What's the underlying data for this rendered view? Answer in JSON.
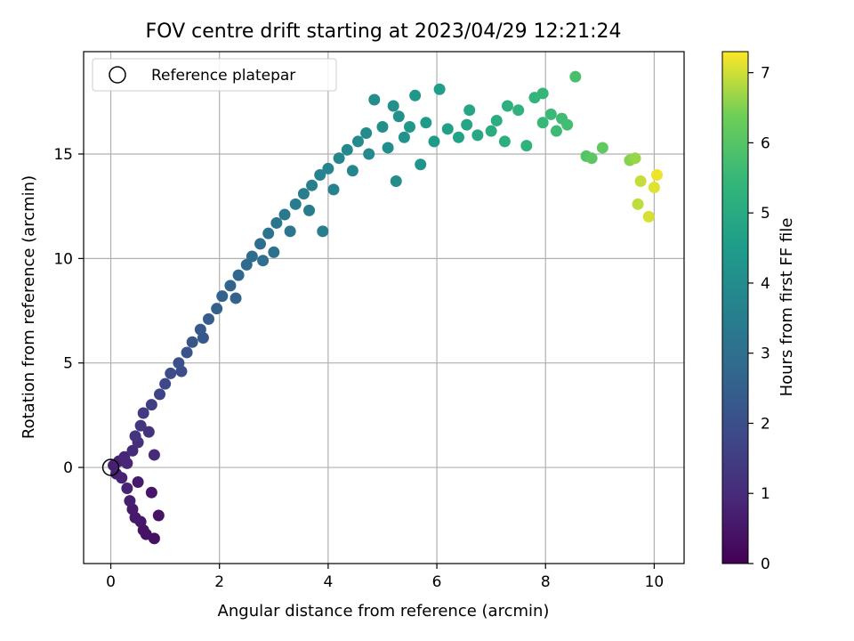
{
  "chart_data": {
    "type": "scatter",
    "title": "FOV centre drift starting at 2023/04/29 12:21:24",
    "xlabel": "Angular distance from reference (arcmin)",
    "ylabel": "Rotation from reference (arcmin)",
    "xlim": [
      -0.5,
      10.55
    ],
    "ylim": [
      -4.6,
      19.9
    ],
    "xticks": [
      0,
      2,
      4,
      6,
      8,
      10
    ],
    "yticks": [
      0,
      5,
      10,
      15
    ],
    "xtick_labels": [
      "0",
      "2",
      "4",
      "6",
      "8",
      "10"
    ],
    "ytick_labels": [
      "0",
      "5",
      "10",
      "15"
    ],
    "grid": true,
    "colormap": "viridis",
    "colorbar": {
      "label": "Hours from first FF file",
      "range": [
        0,
        7.3
      ],
      "ticks": [
        0,
        1,
        2,
        3,
        4,
        5,
        6,
        7
      ],
      "tick_labels": [
        "0",
        "1",
        "2",
        "3",
        "4",
        "5",
        "6",
        "7"
      ]
    },
    "legend": {
      "position": "top-left",
      "entries": [
        {
          "label": "Reference platepar",
          "marker": "open-circle"
        }
      ]
    },
    "reference_point": {
      "x": 0,
      "y": 0
    },
    "points": [
      {
        "x": 0.05,
        "y": 0.1,
        "t": 0.7
      },
      {
        "x": 0.1,
        "y": -0.3,
        "t": 0.75
      },
      {
        "x": 0.15,
        "y": 0.3,
        "t": 0.8
      },
      {
        "x": 0.2,
        "y": -0.5,
        "t": 0.8
      },
      {
        "x": 0.25,
        "y": 0.5,
        "t": 0.85
      },
      {
        "x": 0.3,
        "y": -1.0,
        "t": 0.8
      },
      {
        "x": 0.35,
        "y": -1.6,
        "t": 0.7
      },
      {
        "x": 0.4,
        "y": -2.0,
        "t": 0.6
      },
      {
        "x": 0.45,
        "y": -2.4,
        "t": 0.55
      },
      {
        "x": 0.55,
        "y": -2.6,
        "t": 0.5
      },
      {
        "x": 0.6,
        "y": -3.0,
        "t": 0.45
      },
      {
        "x": 0.65,
        "y": -3.2,
        "t": 0.4
      },
      {
        "x": 0.8,
        "y": -3.4,
        "t": 0.35
      },
      {
        "x": 0.88,
        "y": -2.3,
        "t": 0.4
      },
      {
        "x": 0.75,
        "y": -1.2,
        "t": 0.5
      },
      {
        "x": 0.5,
        "y": -0.7,
        "t": 0.6
      },
      {
        "x": 0.3,
        "y": 0.2,
        "t": 0.9
      },
      {
        "x": 0.4,
        "y": 0.8,
        "t": 1.0
      },
      {
        "x": 0.5,
        "y": 1.2,
        "t": 1.1
      },
      {
        "x": 0.45,
        "y": 1.5,
        "t": 1.25
      },
      {
        "x": 0.55,
        "y": 2.0,
        "t": 1.3
      },
      {
        "x": 0.7,
        "y": 1.7,
        "t": 1.2
      },
      {
        "x": 0.8,
        "y": 0.6,
        "t": 1.0
      },
      {
        "x": 0.6,
        "y": 2.6,
        "t": 1.45
      },
      {
        "x": 0.75,
        "y": 3.0,
        "t": 1.55
      },
      {
        "x": 0.9,
        "y": 3.5,
        "t": 1.7
      },
      {
        "x": 1.0,
        "y": 4.0,
        "t": 1.8
      },
      {
        "x": 1.1,
        "y": 4.5,
        "t": 1.95
      },
      {
        "x": 1.25,
        "y": 5.0,
        "t": 2.05
      },
      {
        "x": 1.3,
        "y": 4.6,
        "t": 1.95
      },
      {
        "x": 1.4,
        "y": 5.5,
        "t": 2.15
      },
      {
        "x": 1.5,
        "y": 6.0,
        "t": 2.2
      },
      {
        "x": 1.65,
        "y": 6.6,
        "t": 2.3
      },
      {
        "x": 1.7,
        "y": 6.2,
        "t": 2.25
      },
      {
        "x": 1.8,
        "y": 7.1,
        "t": 2.4
      },
      {
        "x": 1.95,
        "y": 7.6,
        "t": 2.5
      },
      {
        "x": 2.05,
        "y": 8.2,
        "t": 2.55
      },
      {
        "x": 2.2,
        "y": 8.7,
        "t": 2.65
      },
      {
        "x": 2.3,
        "y": 8.1,
        "t": 2.6
      },
      {
        "x": 2.35,
        "y": 9.2,
        "t": 2.75
      },
      {
        "x": 2.5,
        "y": 9.7,
        "t": 2.85
      },
      {
        "x": 2.6,
        "y": 10.1,
        "t": 2.9
      },
      {
        "x": 2.75,
        "y": 10.7,
        "t": 3.0
      },
      {
        "x": 2.8,
        "y": 9.9,
        "t": 2.95
      },
      {
        "x": 2.9,
        "y": 11.2,
        "t": 3.1
      },
      {
        "x": 3.0,
        "y": 10.3,
        "t": 3.05
      },
      {
        "x": 3.05,
        "y": 11.7,
        "t": 3.2
      },
      {
        "x": 3.2,
        "y": 12.1,
        "t": 3.3
      },
      {
        "x": 3.3,
        "y": 11.3,
        "t": 3.2
      },
      {
        "x": 3.4,
        "y": 12.6,
        "t": 3.4
      },
      {
        "x": 3.55,
        "y": 13.1,
        "t": 3.5
      },
      {
        "x": 3.65,
        "y": 12.3,
        "t": 3.45
      },
      {
        "x": 3.7,
        "y": 13.5,
        "t": 3.55
      },
      {
        "x": 3.85,
        "y": 14.0,
        "t": 3.65
      },
      {
        "x": 3.9,
        "y": 11.3,
        "t": 3.5
      },
      {
        "x": 4.0,
        "y": 14.3,
        "t": 3.7
      },
      {
        "x": 4.1,
        "y": 13.3,
        "t": 3.65
      },
      {
        "x": 4.2,
        "y": 14.8,
        "t": 3.8
      },
      {
        "x": 4.35,
        "y": 15.2,
        "t": 3.85
      },
      {
        "x": 4.45,
        "y": 14.2,
        "t": 3.8
      },
      {
        "x": 4.55,
        "y": 15.6,
        "t": 3.9
      },
      {
        "x": 4.7,
        "y": 16.0,
        "t": 3.95
      },
      {
        "x": 4.75,
        "y": 15.0,
        "t": 3.9
      },
      {
        "x": 4.85,
        "y": 17.6,
        "t": 4.0
      },
      {
        "x": 5.0,
        "y": 16.3,
        "t": 4.05
      },
      {
        "x": 5.1,
        "y": 15.3,
        "t": 4.0
      },
      {
        "x": 5.2,
        "y": 17.3,
        "t": 4.1
      },
      {
        "x": 5.25,
        "y": 13.7,
        "t": 4.05
      },
      {
        "x": 5.3,
        "y": 16.8,
        "t": 4.15
      },
      {
        "x": 5.4,
        "y": 15.8,
        "t": 4.2
      },
      {
        "x": 5.5,
        "y": 16.3,
        "t": 4.3
      },
      {
        "x": 5.6,
        "y": 17.8,
        "t": 4.35
      },
      {
        "x": 5.7,
        "y": 14.5,
        "t": 4.25
      },
      {
        "x": 5.8,
        "y": 16.5,
        "t": 4.45
      },
      {
        "x": 6.05,
        "y": 18.1,
        "t": 4.55
      },
      {
        "x": 5.95,
        "y": 15.6,
        "t": 4.5
      },
      {
        "x": 6.2,
        "y": 16.2,
        "t": 4.65
      },
      {
        "x": 6.4,
        "y": 15.8,
        "t": 4.7
      },
      {
        "x": 6.55,
        "y": 16.4,
        "t": 4.8
      },
      {
        "x": 6.6,
        "y": 17.1,
        "t": 4.85
      },
      {
        "x": 6.75,
        "y": 15.9,
        "t": 4.9
      },
      {
        "x": 7.0,
        "y": 16.1,
        "t": 5.05
      },
      {
        "x": 7.1,
        "y": 16.6,
        "t": 5.1
      },
      {
        "x": 7.25,
        "y": 15.6,
        "t": 5.15
      },
      {
        "x": 7.3,
        "y": 17.3,
        "t": 5.2
      },
      {
        "x": 7.5,
        "y": 17.1,
        "t": 5.25
      },
      {
        "x": 7.65,
        "y": 15.4,
        "t": 5.3
      },
      {
        "x": 7.8,
        "y": 17.7,
        "t": 5.35
      },
      {
        "x": 7.95,
        "y": 17.9,
        "t": 5.45
      },
      {
        "x": 7.95,
        "y": 16.5,
        "t": 5.5
      },
      {
        "x": 8.1,
        "y": 16.9,
        "t": 5.55
      },
      {
        "x": 8.2,
        "y": 16.1,
        "t": 5.6
      },
      {
        "x": 8.3,
        "y": 16.7,
        "t": 5.65
      },
      {
        "x": 8.4,
        "y": 16.4,
        "t": 5.7
      },
      {
        "x": 8.55,
        "y": 18.7,
        "t": 5.8
      },
      {
        "x": 8.75,
        "y": 14.9,
        "t": 6.0
      },
      {
        "x": 8.85,
        "y": 14.8,
        "t": 6.1
      },
      {
        "x": 9.05,
        "y": 15.3,
        "t": 6.2
      },
      {
        "x": 9.55,
        "y": 14.7,
        "t": 6.55
      },
      {
        "x": 9.65,
        "y": 14.8,
        "t": 6.65
      },
      {
        "x": 9.7,
        "y": 12.6,
        "t": 6.9
      },
      {
        "x": 9.75,
        "y": 13.7,
        "t": 6.95
      },
      {
        "x": 9.9,
        "y": 12.0,
        "t": 7.05
      },
      {
        "x": 10.0,
        "y": 13.4,
        "t": 7.1
      },
      {
        "x": 10.05,
        "y": 14.0,
        "t": 7.2
      }
    ]
  }
}
